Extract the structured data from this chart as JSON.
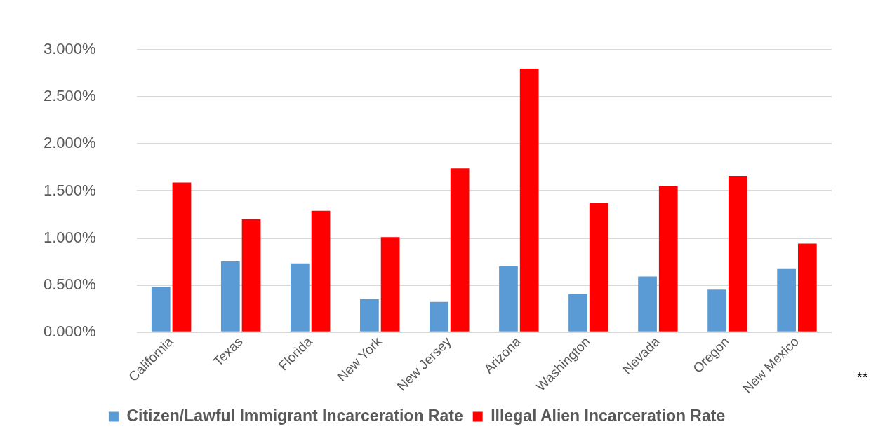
{
  "chart_data": {
    "type": "bar",
    "categories": [
      "California",
      "Texas",
      "Florida",
      "New York",
      "New Jersey",
      "Arizona",
      "Washington",
      "Nevada",
      "Oregon",
      "New Mexico"
    ],
    "series": [
      {
        "name": "Citizen/Lawful Immigrant Incarceration Rate",
        "color": "#5b9bd5",
        "values": [
          0.48,
          0.75,
          0.73,
          0.35,
          0.32,
          0.7,
          0.4,
          0.59,
          0.45,
          0.67
        ]
      },
      {
        "name": "Illegal Alien Incarceration Rate",
        "color": "#ff0000",
        "values": [
          1.59,
          1.2,
          1.29,
          1.01,
          1.74,
          2.8,
          1.37,
          1.55,
          1.66,
          0.94
        ]
      }
    ],
    "ylim": [
      0,
      3
    ],
    "yticks": [
      {
        "value": 0,
        "label": "0.000%"
      },
      {
        "value": 0.5,
        "label": "0.500%"
      },
      {
        "value": 1,
        "label": "1.000%"
      },
      {
        "value": 1.5,
        "label": "1.500%"
      },
      {
        "value": 2,
        "label": "2.000%"
      },
      {
        "value": 2.5,
        "label": "2.500%"
      },
      {
        "value": 3,
        "label": "3.000%"
      }
    ],
    "grid": "y",
    "legend": "bottom",
    "annotations": [
      "**"
    ]
  }
}
